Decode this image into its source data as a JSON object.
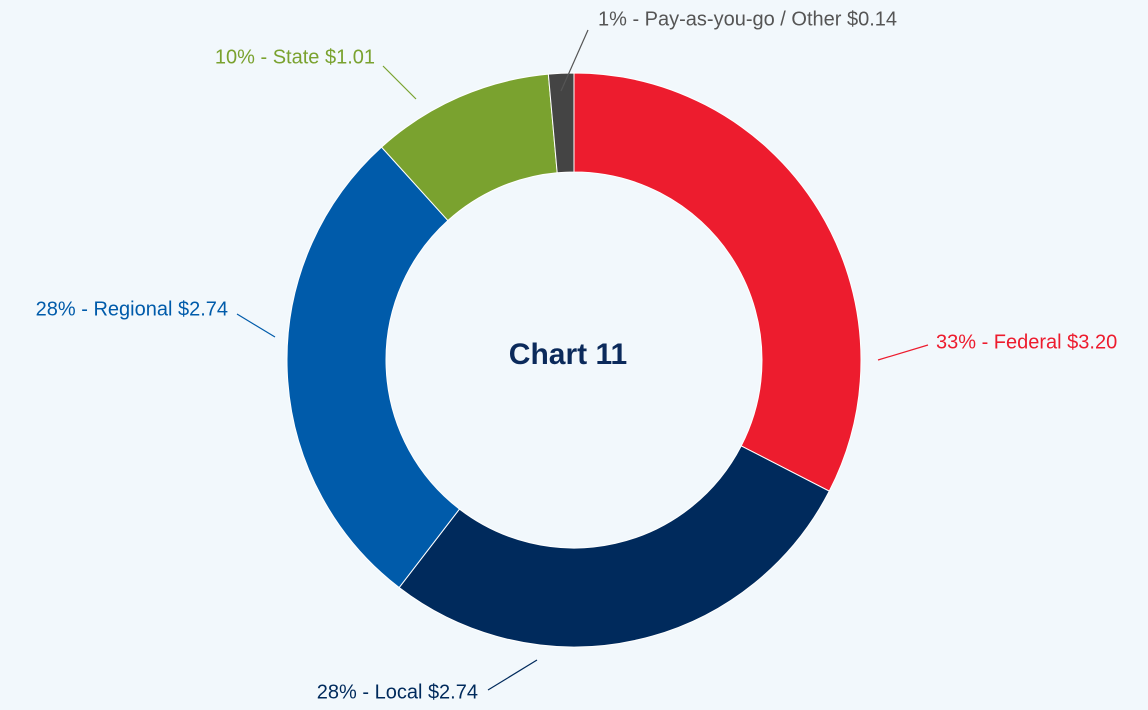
{
  "chart_data": {
    "type": "donut",
    "title": "Chart 11",
    "values": [
      3.2,
      2.74,
      2.74,
      1.01,
      0.14
    ],
    "value_labels": [
      "33% - Federal $3.20",
      "28% - Local $2.74",
      "28% - Regional $2.74",
      "10% - State $1.01",
      "1% - Pay-as-you-go  / Other $0.14"
    ],
    "colors": [
      "#ed1c2e",
      "#002a5c",
      "#005baa",
      "#7aa22f",
      "#444444"
    ]
  }
}
